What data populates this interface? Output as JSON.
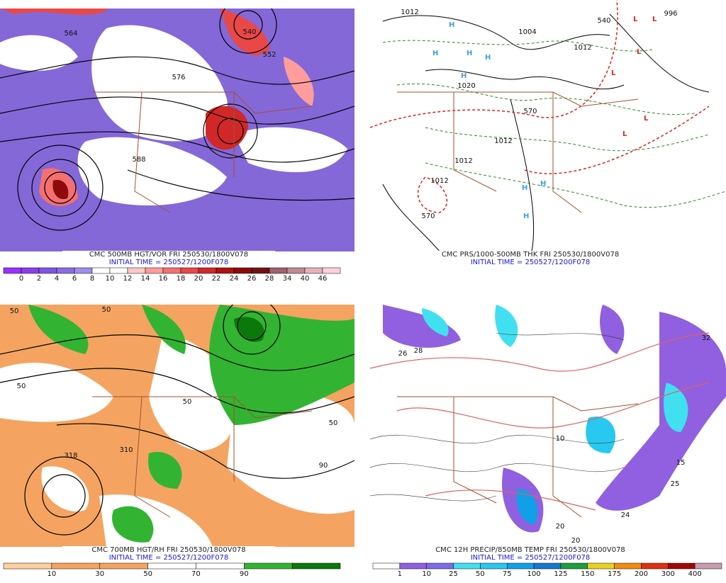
{
  "panels": [
    {
      "caption": "CMC 500MB HGT/VOR FRI 250530/1800V078",
      "initial": "INITIAL TIME = 250527/1200F078",
      "labels": [
        "564",
        "540",
        "552",
        "576",
        "588"
      ],
      "colorbar": {
        "labels": [
          "0",
          "2",
          "4",
          "6",
          "8",
          "10",
          "12",
          "14",
          "16",
          "18",
          "20",
          "22",
          "24",
          "26",
          "28",
          "34",
          "40",
          "46"
        ],
        "colors": [
          "#9b30ff",
          "#8a3ee8",
          "#7f55e0",
          "#8c6ce0",
          "#a08cec",
          "#ffffff",
          "#ffffff",
          "#ffc8c8",
          "#ff9c9c",
          "#f47070",
          "#e84848",
          "#d02828",
          "#b01010",
          "#8c0a0a",
          "#701010",
          "#a0606c",
          "#c08890",
          "#e8b0b8",
          "#ffd0dc"
        ]
      }
    },
    {
      "caption": "CMC PRS/1000-500MB THK FRI 250530/1800V078",
      "initial": "INITIAL TIME = 250527/1200F078",
      "labels": [
        "1012",
        "1004",
        "1012",
        "1020",
        "1012",
        "1012",
        "1012",
        "570",
        "996",
        "540",
        "570"
      ],
      "colorbar": null
    },
    {
      "caption": "CMC 700MB HGT/RH FRI 250530/1800V078",
      "initial": "INITIAL TIME = 250527/1200F078",
      "labels": [
        "50",
        "50",
        "318",
        "50",
        "310",
        "50",
        "50",
        "90"
      ],
      "colorbar": {
        "labels": [
          "10",
          "30",
          "50",
          "70",
          "90"
        ],
        "colors": [
          "#ffd0a0",
          "#f4a460",
          "#f4a460",
          "#ffffff",
          "#ffffff",
          "#32b432",
          "#0a780a"
        ]
      }
    },
    {
      "caption": "CMC 12H PRECIP/850MB TEMP FRI 250530/1800V078",
      "initial": "INITIAL TIME = 250527/1200F078",
      "labels": [
        "28",
        "26",
        "32",
        "10",
        "24",
        "15",
        "25",
        "20",
        "20"
      ],
      "colorbar": {
        "labels": [
          "1",
          "10",
          "25",
          "50",
          "75",
          "100",
          "125",
          "150",
          "175",
          "200",
          "300",
          "400"
        ],
        "colors": [
          "#ffffff",
          "#9060e0",
          "#7c6ce8",
          "#40e0f0",
          "#28c8f0",
          "#10a0e8",
          "#1478d0",
          "#1e9e3c",
          "#e8d020",
          "#f08c10",
          "#e03010",
          "#a00808",
          "#c89cb0"
        ]
      }
    }
  ]
}
